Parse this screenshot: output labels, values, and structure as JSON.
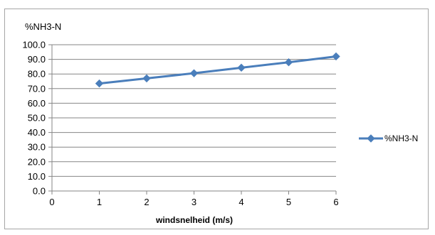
{
  "chart_data": {
    "type": "line",
    "title": "",
    "ylabel": "%NH3-N",
    "xlabel": "windsnelheid (m/s)",
    "x": [
      1,
      2,
      3,
      4,
      5,
      6
    ],
    "series": [
      {
        "name": "%NH3-N",
        "values": [
          73.5,
          77.0,
          80.5,
          84.3,
          88.0,
          92.0
        ],
        "color": "#4a7ebb",
        "marker": "diamond"
      }
    ],
    "xlim": [
      0,
      6
    ],
    "ylim": [
      0,
      100
    ],
    "xticks": [
      "0",
      "1",
      "2",
      "3",
      "4",
      "5",
      "6"
    ],
    "yticks": [
      "0.0",
      "10.0",
      "20.0",
      "30.0",
      "40.0",
      "50.0",
      "60.0",
      "70.0",
      "80.0",
      "90.0",
      "100.0"
    ],
    "grid": "horizontal",
    "legend_position": "right",
    "colors": {
      "series": "#4a7ebb",
      "grid": "#868686",
      "axis": "#868686",
      "border": "#a6a6a6"
    }
  }
}
